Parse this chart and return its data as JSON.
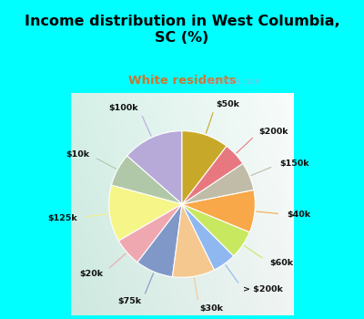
{
  "title": "Income distribution in West Columbia,\nSC (%)",
  "subtitle": "White residents",
  "title_color": "#000000",
  "subtitle_color": "#c87832",
  "background_cyan": "#00ffff",
  "background_chart_color": "#d8eeea",
  "labels": [
    "$100k",
    "$10k",
    "$125k",
    "$20k",
    "$75k",
    "$30k",
    "> $200k",
    "$60k",
    "$40k",
    "$150k",
    "$200k",
    "$50k"
  ],
  "values": [
    13,
    7,
    12,
    6,
    8,
    9,
    5,
    6,
    9,
    6,
    5,
    10
  ],
  "colors": [
    "#b8aad8",
    "#b0c8a8",
    "#f5f588",
    "#f0a8b0",
    "#8098c8",
    "#f5c890",
    "#90b8f0",
    "#c8e860",
    "#f8a848",
    "#c0bca8",
    "#e87880",
    "#c8a828"
  ],
  "startangle": 90,
  "watermark": "  City-Data.com",
  "label_line_colors": [
    "#b8aad8",
    "#b0c8a8",
    "#f5f588",
    "#f0a8b0",
    "#8098c8",
    "#f5c890",
    "#90b8f0",
    "#c8e860",
    "#f8a848",
    "#c0bca8",
    "#e87880",
    "#c8a828"
  ]
}
